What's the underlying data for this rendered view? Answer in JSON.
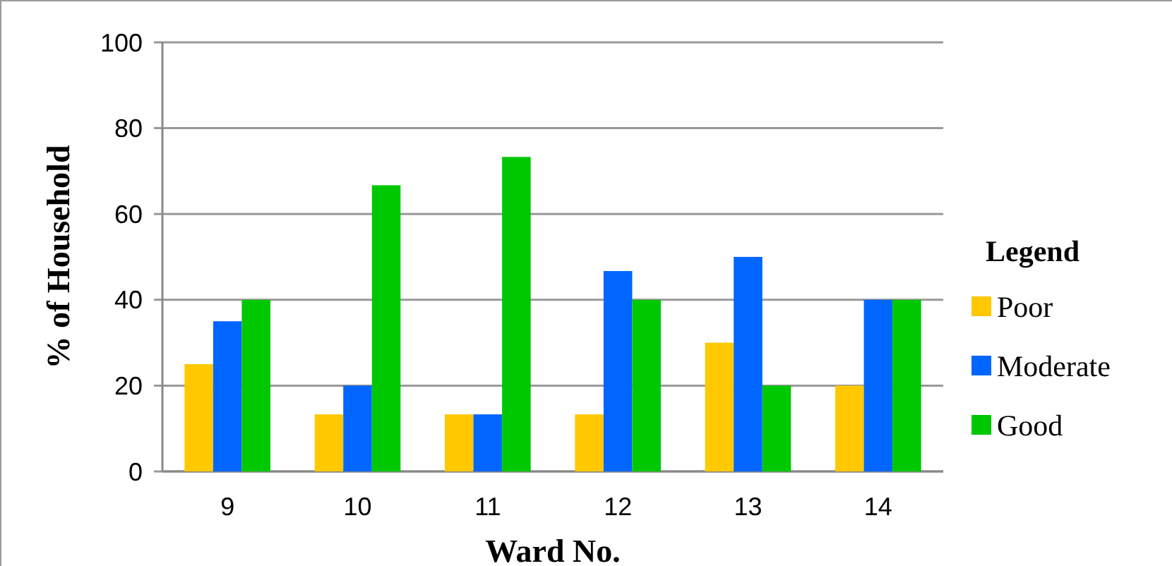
{
  "chart_data": {
    "type": "bar",
    "xlabel": "Ward No.",
    "ylabel": "% of Household",
    "legend_title": "Legend",
    "categories": [
      "9",
      "10",
      "11",
      "12",
      "13",
      "14"
    ],
    "series": [
      {
        "name": "Poor",
        "color": "#ffc800",
        "values": [
          25,
          13.3,
          13.3,
          13.3,
          30,
          20
        ]
      },
      {
        "name": "Moderate",
        "color": "#0066ff",
        "values": [
          35,
          20,
          13.3,
          46.7,
          50,
          40
        ]
      },
      {
        "name": "Good",
        "color": "#00c800",
        "values": [
          40,
          66.7,
          73.3,
          40,
          20,
          40
        ]
      }
    ],
    "ylim": [
      0,
      100
    ],
    "yticks": [
      0,
      20,
      40,
      60,
      80,
      100
    ],
    "grid": "y",
    "legend": "right"
  }
}
